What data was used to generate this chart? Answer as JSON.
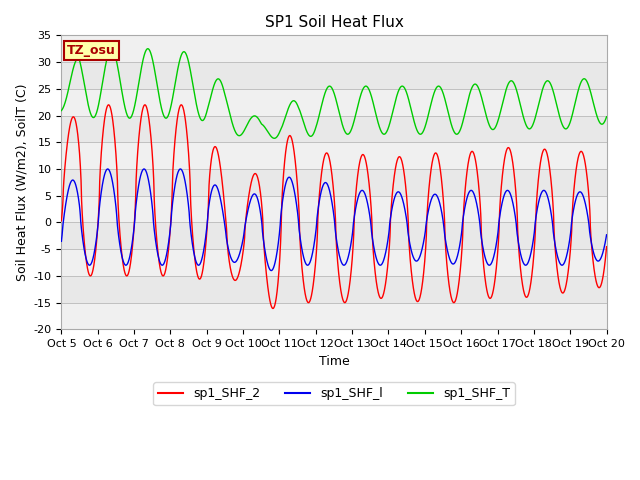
{
  "title": "SP1 Soil Heat Flux",
  "xlabel": "Time",
  "ylabel": "Soil Heat Flux (W/m2), SoilT (C)",
  "ylim": [
    -20,
    35
  ],
  "xlim": [
    0,
    15
  ],
  "xtick_labels": [
    "Oct 5",
    "Oct 6",
    "Oct 7",
    "Oct 8",
    "Oct 9",
    "Oct 10",
    "Oct 11",
    "Oct 12",
    "Oct 13",
    "Oct 14",
    "Oct 15",
    "Oct 16",
    "Oct 17",
    "Oct 18",
    "Oct 19",
    "Oct 20"
  ],
  "ytick_vals": [
    -20,
    -15,
    -10,
    -5,
    0,
    5,
    10,
    15,
    20,
    25,
    30,
    35
  ],
  "line_red": "sp1_SHF_2",
  "line_blue": "sp1_SHF_l",
  "line_green": "sp1_SHF_T",
  "color_red": "#ff0000",
  "color_blue": "#0000ee",
  "color_green": "#00cc00",
  "tz_label": "TZ_osu",
  "tz_bg": "#ffffaa",
  "tz_border": "#aa0000",
  "bg_color": "#ffffff",
  "plot_bg": "#e8e8e8",
  "band_light": "#f0f0f0",
  "title_fontsize": 11,
  "label_fontsize": 9,
  "tick_fontsize": 8,
  "legend_fontsize": 9
}
